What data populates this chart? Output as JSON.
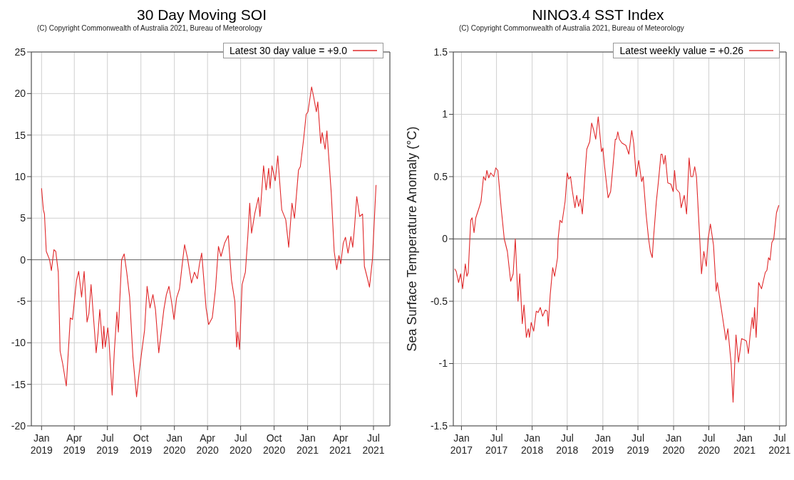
{
  "chart_data": [
    {
      "type": "line",
      "title": "30 Day Moving SOI",
      "annotations": [
        "(C) Copyright Commonwealth of Australia 2021, Bureau of Meteorology"
      ],
      "xlim": [
        "2018-12-04",
        "2021-08-15"
      ],
      "xticks": [
        {
          "value": "2019-01-01",
          "label": "Jan 2019"
        },
        {
          "value": "2019-04-01",
          "label": "Apr 2019"
        },
        {
          "value": "2019-07-01",
          "label": "Jul 2019"
        },
        {
          "value": "2019-10-01",
          "label": "Oct 2019"
        },
        {
          "value": "2020-01-01",
          "label": "Jan 2020"
        },
        {
          "value": "2020-04-01",
          "label": "Apr 2020"
        },
        {
          "value": "2020-07-01",
          "label": "Jul 2020"
        },
        {
          "value": "2020-10-01",
          "label": "Oct 2020"
        },
        {
          "value": "2021-01-01",
          "label": "Jan 2021"
        },
        {
          "value": "2021-04-01",
          "label": "Apr 2021"
        },
        {
          "value": "2021-07-01",
          "label": "Jul 2021"
        }
      ],
      "ylim": [
        -20,
        25
      ],
      "yticks": [
        -20,
        -15,
        -10,
        -5,
        0,
        5,
        10,
        15,
        20,
        25
      ],
      "grid": true,
      "legend": "top right",
      "line_style": "solid",
      "ref_lines": [
        {
          "axis": "y",
          "value": 0,
          "color": "#808080"
        }
      ],
      "series": [
        {
          "name": "Latest 30 day value = +9.0",
          "color": "#e0282a",
          "x": [
            "2019-01-01",
            "2019-01-06",
            "2019-01-09",
            "2019-01-14",
            "2019-01-23",
            "2019-01-28",
            "2019-02-04",
            "2019-02-09",
            "2019-02-16",
            "2019-02-21",
            "2019-02-28",
            "2019-03-10",
            "2019-03-21",
            "2019-03-27",
            "2019-04-07",
            "2019-04-13",
            "2019-04-21",
            "2019-04-28",
            "2019-05-06",
            "2019-05-11",
            "2019-05-17",
            "2019-05-31",
            "2019-06-05",
            "2019-06-10",
            "2019-06-18",
            "2019-06-21",
            "2019-06-25",
            "2019-07-02",
            "2019-07-05",
            "2019-07-14",
            "2019-07-20",
            "2019-07-27",
            "2019-07-31",
            "2019-08-09",
            "2019-08-16",
            "2019-08-23",
            "2019-08-31",
            "2019-09-09",
            "2019-09-19",
            "2019-09-29",
            "2019-10-11",
            "2019-10-18",
            "2019-10-26",
            "2019-11-03",
            "2019-11-10",
            "2019-11-19",
            "2019-12-03",
            "2019-12-10",
            "2019-12-17",
            "2019-12-24",
            "2019-12-31",
            "2020-01-07",
            "2020-01-15",
            "2020-01-24",
            "2020-01-29",
            "2020-02-06",
            "2020-02-17",
            "2020-02-25",
            "2020-03-04",
            "2020-03-10",
            "2020-03-16",
            "2020-03-28",
            "2020-04-04",
            "2020-04-14",
            "2020-04-23",
            "2020-05-01",
            "2020-05-08",
            "2020-05-18",
            "2020-05-28",
            "2020-06-06",
            "2020-06-15",
            "2020-06-20",
            "2020-06-23",
            "2020-06-28",
            "2020-07-05",
            "2020-07-14",
            "2020-07-21",
            "2020-07-26",
            "2020-07-31",
            "2020-08-09",
            "2020-08-19",
            "2020-08-23",
            "2020-09-02",
            "2020-09-09",
            "2020-09-16",
            "2020-09-20",
            "2020-09-25",
            "2020-10-04",
            "2020-10-11",
            "2020-10-22",
            "2020-11-02",
            "2020-11-10",
            "2020-11-19",
            "2020-11-26",
            "2020-12-07",
            "2020-12-12",
            "2020-12-21",
            "2020-12-28",
            "2021-01-02",
            "2021-01-12",
            "2021-01-18",
            "2021-01-25",
            "2021-01-29",
            "2021-02-06",
            "2021-02-10",
            "2021-02-18",
            "2021-02-23",
            "2021-03-07",
            "2021-03-15",
            "2021-03-22",
            "2021-03-28",
            "2021-04-02",
            "2021-04-09",
            "2021-04-15",
            "2021-04-22",
            "2021-04-30",
            "2021-05-05",
            "2021-05-10",
            "2021-05-16",
            "2021-05-24",
            "2021-06-01",
            "2021-06-06",
            "2021-06-13",
            "2021-06-20",
            "2021-06-28",
            "2021-07-08"
          ],
          "values": [
            8.6,
            6,
            5.5,
            1,
            0,
            -1.3,
            1.2,
            1,
            -1.5,
            -11,
            -12.5,
            -15.2,
            -7,
            -7.2,
            -2.5,
            -1.4,
            -4.5,
            -1.4,
            -7.5,
            -6.5,
            -3,
            -11.2,
            -9,
            -6,
            -10.7,
            -8,
            -10.5,
            -8.2,
            -9.5,
            -16.3,
            -11,
            -6.3,
            -8.7,
            0,
            0.7,
            -1.5,
            -4.5,
            -11.7,
            -16.5,
            -12.5,
            -8.5,
            -3.2,
            -5.8,
            -4.2,
            -6,
            -11.2,
            -6,
            -4.2,
            -3.2,
            -5,
            -7.2,
            -4.6,
            -3.5,
            0,
            1.8,
            0.2,
            -2.8,
            -1.5,
            -2.3,
            -0.5,
            0.8,
            -5.8,
            -7.8,
            -7,
            -3.5,
            1.6,
            0.4,
            2,
            2.9,
            -2.5,
            -5,
            -10.5,
            -8.7,
            -10.8,
            -3,
            -1.5,
            3,
            6.8,
            3.2,
            5.6,
            7.5,
            5.2,
            11.3,
            8.4,
            11,
            8.6,
            11.3,
            9.5,
            12.5,
            6,
            4.8,
            1.5,
            6.8,
            5,
            10.8,
            11.2,
            14.5,
            17.5,
            17.8,
            20.8,
            19.5,
            17.8,
            19,
            14,
            15.3,
            13.3,
            15.5,
            8,
            1,
            -1.2,
            0.5,
            -0.5,
            2,
            2.7,
            0.8,
            2.8,
            1.5,
            4,
            7.6,
            5.2,
            5.5,
            -0.8,
            -2,
            -3.3,
            0,
            9.0
          ]
        }
      ]
    },
    {
      "type": "line",
      "title": "NINO3.4 SST Index",
      "annotations": [
        "(C) Copyright Commonwealth of Australia 2021, Bureau of Meteorology"
      ],
      "ylabel": "Sea Surface Temperature Anomaly (°C)",
      "xlim": [
        "2016-11-20",
        "2021-08-04"
      ],
      "xticks": [
        {
          "value": "2017-01-01",
          "label": "Jan 2017"
        },
        {
          "value": "2017-07-01",
          "label": "Jul 2017"
        },
        {
          "value": "2018-01-01",
          "label": "Jan 2018"
        },
        {
          "value": "2018-07-01",
          "label": "Jul 2018"
        },
        {
          "value": "2019-01-01",
          "label": "Jan 2019"
        },
        {
          "value": "2019-07-01",
          "label": "Jul 2019"
        },
        {
          "value": "2020-01-01",
          "label": "Jan 2020"
        },
        {
          "value": "2020-07-01",
          "label": "Jul 2020"
        },
        {
          "value": "2021-01-01",
          "label": "Jan 2021"
        },
        {
          "value": "2021-07-01",
          "label": "Jul 2021"
        }
      ],
      "ylim": [
        -1.5,
        1.5
      ],
      "yticks": [
        -1.5,
        -1,
        -0.5,
        0,
        0.5,
        1,
        1.5
      ],
      "grid": true,
      "legend": "top right",
      "line_style": "solid",
      "ref_lines": [
        {
          "axis": "y",
          "value": 0,
          "color": "#808080"
        }
      ],
      "series": [
        {
          "name": "Latest weekly value = +0.26",
          "color": "#e0282a",
          "x": [
            "2016-11-27",
            "2016-12-05",
            "2016-12-17",
            "2016-12-28",
            "2017-01-07",
            "2017-01-21",
            "2017-01-29",
            "2017-02-05",
            "2017-02-18",
            "2017-02-25",
            "2017-03-07",
            "2017-03-16",
            "2017-04-02",
            "2017-04-12",
            "2017-04-25",
            "2017-05-05",
            "2017-05-12",
            "2017-05-22",
            "2017-06-01",
            "2017-06-17",
            "2017-06-27",
            "2017-07-08",
            "2017-07-25",
            "2017-08-10",
            "2017-08-26",
            "2017-09-12",
            "2017-09-25",
            "2017-10-06",
            "2017-10-20",
            "2017-10-29",
            "2017-11-11",
            "2017-11-20",
            "2017-12-02",
            "2017-12-12",
            "2017-12-18",
            "2017-12-27",
            "2018-01-09",
            "2018-01-22",
            "2018-02-01",
            "2018-02-12",
            "2018-02-24",
            "2018-03-10",
            "2018-03-20",
            "2018-03-25",
            "2018-04-04",
            "2018-04-17",
            "2018-04-27",
            "2018-05-12",
            "2018-05-15",
            "2018-05-25",
            "2018-06-04",
            "2018-06-20",
            "2018-07-01",
            "2018-07-09",
            "2018-07-18",
            "2018-07-28",
            "2018-08-10",
            "2018-08-19",
            "2018-08-29",
            "2018-09-07",
            "2018-09-17",
            "2018-10-02",
            "2018-10-10",
            "2018-10-25",
            "2018-11-04",
            "2018-11-15",
            "2018-11-25",
            "2018-12-08",
            "2018-12-25",
            "2019-01-01",
            "2019-01-10",
            "2019-01-28",
            "2019-02-10",
            "2019-02-23",
            "2019-03-06",
            "2019-03-12",
            "2019-03-19",
            "2019-03-27",
            "2019-04-09",
            "2019-04-30",
            "2019-05-15",
            "2019-05-30",
            "2019-06-09",
            "2019-06-22",
            "2019-07-05",
            "2019-07-20",
            "2019-07-28",
            "2019-08-12",
            "2019-08-25",
            "2019-09-03",
            "2019-09-13",
            "2019-09-19",
            "2019-10-04",
            "2019-10-14",
            "2019-10-28",
            "2019-11-03",
            "2019-11-12",
            "2019-11-19",
            "2019-12-02",
            "2019-12-18",
            "2019-12-30",
            "2020-01-06",
            "2020-01-15",
            "2020-02-01",
            "2020-02-09",
            "2020-02-25",
            "2020-03-08",
            "2020-03-21",
            "2020-03-30",
            "2020-04-09",
            "2020-04-19",
            "2020-04-28",
            "2020-05-15",
            "2020-05-24",
            "2020-06-05",
            "2020-06-18",
            "2020-06-27",
            "2020-07-09",
            "2020-07-25",
            "2020-08-08",
            "2020-08-14",
            "2020-09-09",
            "2020-09-27",
            "2020-10-07",
            "2020-10-24",
            "2020-11-03",
            "2020-11-18",
            "2020-12-01",
            "2020-12-17",
            "2021-01-01",
            "2021-01-11",
            "2021-01-21",
            "2021-01-30",
            "2021-02-10",
            "2021-02-16",
            "2021-02-22",
            "2021-03-02",
            "2021-03-15",
            "2021-03-30",
            "2021-04-18",
            "2021-04-27",
            "2021-05-05",
            "2021-05-13",
            "2021-05-22",
            "2021-06-01",
            "2021-06-15",
            "2021-06-27"
          ],
          "values": [
            -0.24,
            -0.26,
            -0.35,
            -0.28,
            -0.4,
            -0.2,
            -0.3,
            -0.27,
            0.15,
            0.17,
            0.05,
            0.17,
            0.25,
            0.3,
            0.5,
            0.47,
            0.55,
            0.49,
            0.53,
            0.5,
            0.57,
            0.55,
            0.25,
            0,
            -0.1,
            -0.34,
            -0.28,
            0,
            -0.5,
            -0.28,
            -0.68,
            -0.53,
            -0.79,
            -0.72,
            -0.79,
            -0.67,
            -0.74,
            -0.58,
            -0.59,
            -0.55,
            -0.62,
            -0.57,
            -0.58,
            -0.7,
            -0.45,
            -0.23,
            -0.3,
            -0.15,
            0,
            0.15,
            0.13,
            0.3,
            0.53,
            0.48,
            0.5,
            0.38,
            0.25,
            0.35,
            0.26,
            0.32,
            0.2,
            0.55,
            0.72,
            0.78,
            0.93,
            0.87,
            0.8,
            0.98,
            0.7,
            0.73,
            0.58,
            0.33,
            0.38,
            0.6,
            0.8,
            0.8,
            0.86,
            0.8,
            0.77,
            0.75,
            0.68,
            0.87,
            0.77,
            0.5,
            0.63,
            0.46,
            0.5,
            0.2,
            0,
            -0.1,
            -0.15,
            0,
            0.3,
            0.45,
            0.68,
            0.68,
            0.6,
            0.67,
            0.45,
            0.44,
            0.38,
            0.55,
            0.4,
            0.37,
            0.25,
            0.35,
            0.2,
            0.65,
            0.5,
            0.5,
            0.58,
            0.5,
            0,
            -0.28,
            -0.1,
            -0.22,
            0,
            0.12,
            -0.05,
            -0.42,
            -0.35,
            -0.62,
            -0.81,
            -0.72,
            -1.0,
            -1.31,
            -0.77,
            -0.99,
            -0.8,
            -0.81,
            -0.82,
            -0.92,
            -0.77,
            -0.63,
            -0.72,
            -0.55,
            -0.79,
            -0.35,
            -0.4,
            -0.27,
            -0.25,
            -0.15,
            -0.17,
            -0.03,
            0,
            0.21,
            0.27
          ]
        }
      ]
    }
  ]
}
